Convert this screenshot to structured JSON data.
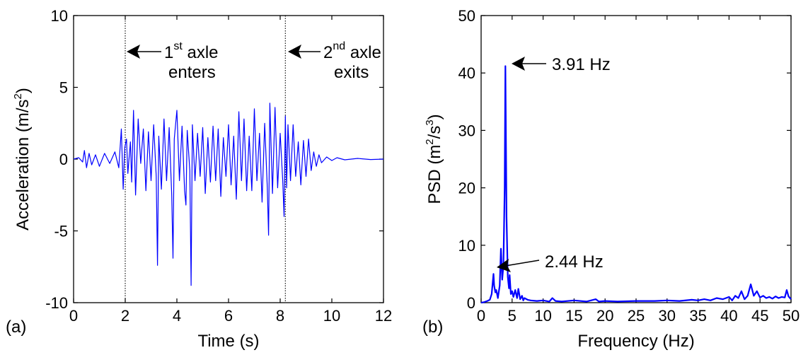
{
  "chart_data": [
    {
      "panel_label": "(a)",
      "type": "line",
      "xlabel": "Time (s)",
      "ylabel_main": "Acceleration (m/s",
      "ylabel_sup": "2",
      "ylabel_end": ")",
      "xlim": [
        0,
        12
      ],
      "ylim": [
        -10,
        10
      ],
      "xticks": [
        0,
        2,
        4,
        6,
        8,
        10,
        12
      ],
      "yticks": [
        -10,
        -5,
        0,
        5,
        10
      ],
      "xtick_labels": [
        "0",
        "2",
        "4",
        "6",
        "8",
        "10",
        "12"
      ],
      "ytick_labels": [
        "-10",
        "-5",
        "0",
        "5",
        "10"
      ],
      "series_color": "#0000ff",
      "grid": false,
      "vlines": [
        2.0,
        8.2
      ],
      "annotations": [
        {
          "pre": "1",
          "sup": "st",
          "post": " axle",
          "line2": "enters",
          "target_x": 2.0,
          "target_y": 7.6
        },
        {
          "pre": "2",
          "sup": "nd",
          "post": " axle",
          "line2": "exits",
          "target_x": 8.2,
          "target_y": 7.6
        }
      ],
      "series": [
        {
          "x": [
            0.0,
            0.2,
            0.35,
            0.42,
            0.5,
            0.6,
            0.7,
            0.85,
            1.0,
            1.2,
            1.4,
            1.6,
            1.75,
            1.85,
            1.92,
            1.98,
            2.05,
            2.1,
            2.2,
            2.25,
            2.32,
            2.4,
            2.5,
            2.6,
            2.7,
            2.8,
            2.9,
            3.0,
            3.1,
            3.2,
            3.25,
            3.3,
            3.4,
            3.5,
            3.6,
            3.7,
            3.8,
            3.85,
            3.9,
            4.0,
            4.1,
            4.2,
            4.3,
            4.35,
            4.4,
            4.5,
            4.55,
            4.6,
            4.7,
            4.8,
            4.9,
            5.0,
            5.1,
            5.2,
            5.3,
            5.4,
            5.5,
            5.6,
            5.7,
            5.8,
            5.9,
            6.0,
            6.1,
            6.2,
            6.3,
            6.4,
            6.5,
            6.6,
            6.7,
            6.8,
            6.9,
            7.0,
            7.1,
            7.2,
            7.3,
            7.4,
            7.5,
            7.55,
            7.6,
            7.7,
            7.8,
            7.9,
            8.0,
            8.1,
            8.15,
            8.2,
            8.25,
            8.3,
            8.4,
            8.5,
            8.6,
            8.7,
            8.8,
            8.9,
            9.0,
            9.1,
            9.2,
            9.3,
            9.4,
            9.5,
            9.6,
            9.8,
            10.0,
            10.2,
            10.5,
            11.0,
            11.5,
            12.0
          ],
          "y": [
            0.0,
            0.1,
            -0.2,
            0.6,
            -0.6,
            0.4,
            -0.4,
            0.3,
            -0.5,
            0.4,
            -0.3,
            0.5,
            -0.6,
            2.1,
            -2.1,
            0.8,
            1.4,
            -1.0,
            1.2,
            -1.6,
            3.4,
            -2.5,
            2.8,
            -0.3,
            2.1,
            -2.2,
            1.9,
            -1.5,
            2.4,
            -1.2,
            -7.4,
            1.6,
            -2.1,
            2.8,
            -1.5,
            2.2,
            -2.5,
            -6.9,
            1.4,
            3.4,
            -1.5,
            2.3,
            -2.2,
            -3.2,
            2.0,
            -0.8,
            -8.8,
            2.4,
            -1.5,
            1.8,
            -1.2,
            2.2,
            -2.4,
            1.5,
            -1.6,
            2.3,
            -1.5,
            2.1,
            -2.6,
            1.5,
            -1.2,
            2.4,
            -1.8,
            1.6,
            -2.8,
            3.3,
            -1.5,
            2.8,
            -2.2,
            1.6,
            -2.2,
            3.5,
            -1.5,
            1.8,
            -3.0,
            2.5,
            -2.0,
            -5.3,
            3.9,
            -2.4,
            3.6,
            -2.0,
            1.8,
            -1.5,
            -4.0,
            3.0,
            -2.0,
            2.4,
            -1.5,
            2.4,
            -1.2,
            1.2,
            -1.8,
            1.3,
            -1.2,
            1.4,
            -0.8,
            0.5,
            -0.5,
            0.3,
            -0.25,
            0.15,
            -0.1,
            0.1,
            -0.05,
            0.05,
            -0.03,
            0.0
          ]
        }
      ]
    },
    {
      "panel_label": "(b)",
      "type": "line",
      "xlabel": "Frequency (Hz)",
      "ylabel_main": "PSD (m",
      "ylabel_sup1": "2",
      "ylabel_mid": "/s",
      "ylabel_sup2": "3",
      "ylabel_end": ")",
      "xlim": [
        0,
        50
      ],
      "ylim": [
        0,
        50
      ],
      "xticks": [
        0,
        5,
        10,
        15,
        20,
        25,
        30,
        35,
        40,
        45,
        50
      ],
      "yticks": [
        0,
        10,
        20,
        30,
        40,
        50
      ],
      "xtick_labels": [
        "0",
        "5",
        "10",
        "15",
        "20",
        "25",
        "30",
        "35",
        "40",
        "45",
        "50"
      ],
      "ytick_labels": [
        "0",
        "10",
        "20",
        "30",
        "40",
        "50"
      ],
      "series_color": "#0000ff",
      "grid": false,
      "annotations": [
        {
          "text": "3.91 Hz",
          "target_x": 3.91,
          "target_y": 41.2
        },
        {
          "text": "2.44 Hz",
          "target_x": 2.1,
          "target_y": 5.0
        }
      ],
      "series": [
        {
          "x": [
            0.0,
            0.5,
            1.0,
            1.4,
            1.7,
            2.0,
            2.1,
            2.3,
            2.44,
            2.7,
            3.0,
            3.2,
            3.4,
            3.6,
            3.8,
            3.91,
            4.1,
            4.3,
            4.5,
            4.6,
            4.8,
            5.0,
            5.2,
            5.5,
            5.8,
            6.0,
            6.3,
            6.6,
            6.8,
            7.0,
            7.5,
            8.0,
            9.0,
            10.0,
            11.0,
            11.5,
            12.0,
            13.0,
            15.0,
            17.0,
            18.5,
            19.0,
            20.0,
            22.0,
            25.0,
            28.0,
            30.0,
            32.0,
            34.0,
            35.0,
            36.0,
            37.0,
            38.0,
            39.0,
            40.0,
            40.5,
            41.0,
            41.5,
            42.0,
            42.5,
            43.0,
            43.5,
            44.0,
            44.5,
            45.0,
            45.5,
            46.0,
            46.5,
            47.0,
            47.5,
            48.0,
            48.5,
            49.0,
            49.3,
            49.6,
            50.0
          ],
          "y": [
            0.0,
            0.1,
            0.3,
            0.5,
            1.5,
            5.0,
            3.0,
            1.8,
            2.2,
            0.8,
            3.0,
            9.4,
            4.0,
            6.5,
            20.0,
            41.2,
            15.0,
            4.5,
            2.5,
            4.8,
            1.5,
            2.0,
            1.0,
            2.2,
            0.8,
            2.4,
            0.6,
            1.2,
            0.4,
            0.8,
            0.5,
            0.4,
            0.3,
            0.4,
            0.2,
            0.8,
            0.3,
            0.2,
            0.4,
            0.2,
            0.6,
            0.2,
            0.3,
            0.2,
            0.3,
            0.3,
            0.4,
            0.3,
            0.5,
            0.4,
            0.6,
            0.4,
            0.8,
            0.6,
            1.0,
            0.4,
            1.2,
            0.8,
            2.0,
            0.6,
            1.2,
            3.2,
            1.2,
            2.0,
            0.9,
            1.2,
            0.8,
            1.0,
            0.7,
            1.1,
            0.8,
            1.0,
            0.9,
            2.2,
            1.1,
            0.6
          ]
        }
      ]
    }
  ]
}
